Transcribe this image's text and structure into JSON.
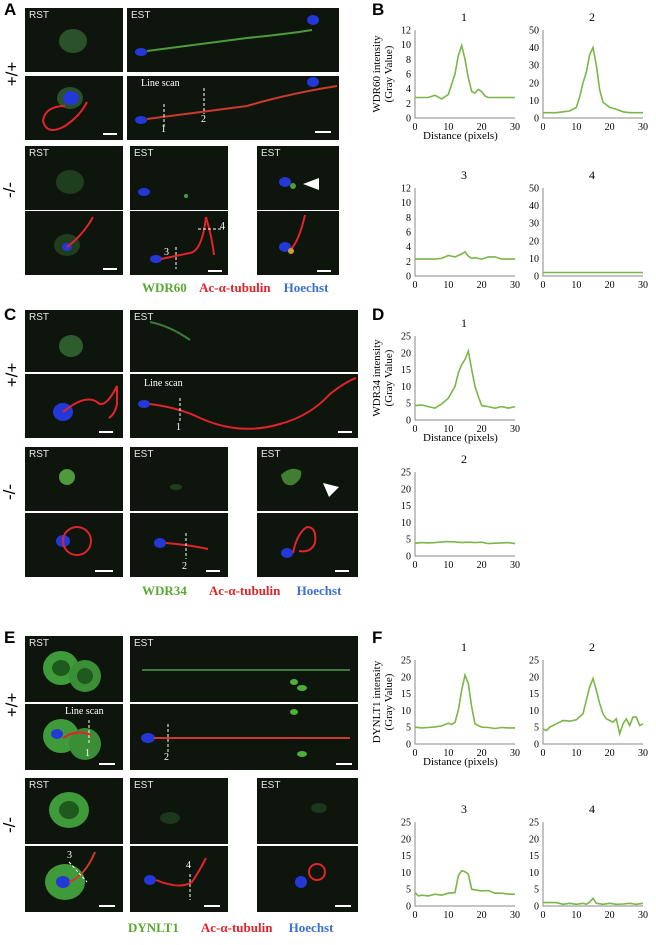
{
  "figure": {
    "panels": {
      "A": "A",
      "B": "B",
      "C": "C",
      "D": "D",
      "E": "E",
      "F": "F"
    },
    "genotypes": {
      "wt": "+/+",
      "ko": "-/-"
    },
    "stages": {
      "rst": "RST",
      "est": "EST"
    },
    "line_scan_label": "Line scan",
    "scan_numbers": [
      "1",
      "2",
      "3",
      "4"
    ],
    "legends": {
      "A": {
        "marker": "WDR60",
        "tubulin": "Ac-α-tubulin",
        "dna": "Hoechst"
      },
      "C": {
        "marker": "WDR34",
        "tubulin": "Ac-α-tubulin",
        "dna": "Hoechst"
      },
      "E": {
        "marker": "DYNLT1",
        "tubulin": "Ac-α-tubulin",
        "dna": "Hoechst"
      }
    },
    "colors": {
      "green": "#5aa832",
      "red": "#e0242a",
      "blue": "#3b6fd0",
      "line": "#7ab648"
    }
  },
  "chart_data": [
    {
      "panel": "B",
      "title": "1",
      "type": "line",
      "ylabel": "WDR60 intensity\n(Gray Value)",
      "xlabel": "Distance (pixels)",
      "xlim": [
        0,
        30
      ],
      "ylim": [
        0,
        12
      ],
      "yticks": [
        0,
        2,
        4,
        6,
        8,
        10,
        12
      ],
      "xticks": [
        0,
        10,
        20,
        30
      ],
      "x": [
        0,
        2,
        4,
        6,
        8,
        10,
        12,
        13,
        14,
        15,
        16,
        17,
        18,
        19,
        20,
        21,
        22,
        24,
        26,
        28,
        30
      ],
      "y": [
        2.8,
        2.8,
        2.8,
        3.1,
        2.6,
        3.2,
        6.0,
        8.5,
        9.9,
        8.0,
        5.5,
        3.6,
        3.4,
        3.9,
        3.6,
        3.0,
        2.8,
        2.8,
        2.8,
        2.8,
        2.8
      ]
    },
    {
      "panel": "B",
      "title": "2",
      "type": "line",
      "xlim": [
        0,
        30
      ],
      "ylim": [
        0,
        50
      ],
      "yticks": [
        0,
        10,
        20,
        30,
        40,
        50
      ],
      "xticks": [
        0,
        10,
        20,
        30
      ],
      "x": [
        0,
        2,
        4,
        6,
        8,
        10,
        11,
        12,
        13,
        14,
        15,
        16,
        17,
        18,
        20,
        22,
        24,
        26,
        28,
        30
      ],
      "y": [
        3,
        3,
        3,
        3.5,
        4,
        6,
        12,
        20,
        26,
        36,
        40,
        30,
        16,
        9,
        6,
        5,
        3.5,
        3,
        3,
        3
      ]
    },
    {
      "panel": "B",
      "title": "3",
      "type": "line",
      "xlim": [
        0,
        30
      ],
      "ylim": [
        0,
        12
      ],
      "yticks": [
        0,
        2,
        4,
        6,
        8,
        10,
        12
      ],
      "xticks": [
        0,
        10,
        20,
        30
      ],
      "x": [
        0,
        2,
        4,
        6,
        8,
        10,
        12,
        14,
        15,
        16,
        17,
        18,
        20,
        22,
        24,
        26,
        28,
        30
      ],
      "y": [
        2.3,
        2.3,
        2.3,
        2.3,
        2.4,
        2.8,
        2.6,
        3.0,
        3.3,
        2.7,
        2.4,
        2.5,
        2.3,
        2.6,
        2.6,
        2.3,
        2.3,
        2.3
      ]
    },
    {
      "panel": "B",
      "title": "4",
      "type": "line",
      "xlim": [
        0,
        30
      ],
      "ylim": [
        0,
        50
      ],
      "yticks": [
        0,
        10,
        20,
        30,
        40,
        50
      ],
      "xticks": [
        0,
        10,
        20,
        30
      ],
      "x": [
        0,
        10,
        20,
        30
      ],
      "y": [
        2,
        2,
        2,
        2
      ]
    },
    {
      "panel": "D",
      "title": "1",
      "type": "line",
      "ylabel": "WDR34 intensity\n(Gray Value)",
      "xlabel": "Distance (pixels)",
      "xlim": [
        0,
        30
      ],
      "ylim": [
        0,
        25
      ],
      "yticks": [
        0,
        5,
        10,
        15,
        20,
        25
      ],
      "xticks": [
        0,
        10,
        20,
        30
      ],
      "x": [
        0,
        2,
        4,
        6,
        8,
        10,
        12,
        13,
        14,
        15,
        16,
        17,
        18,
        19,
        20,
        22,
        24,
        26,
        28,
        30
      ],
      "y": [
        4.3,
        4.5,
        4.0,
        3.5,
        4.8,
        6.5,
        10,
        14,
        16.5,
        18,
        20.5,
        15,
        10,
        7,
        4.3,
        4,
        3.5,
        4,
        3.5,
        4
      ]
    },
    {
      "panel": "D",
      "title": "2",
      "type": "line",
      "xlim": [
        0,
        30
      ],
      "ylim": [
        0,
        25
      ],
      "yticks": [
        0,
        5,
        10,
        15,
        20,
        25
      ],
      "xticks": [
        0,
        10,
        20,
        30
      ],
      "x": [
        0,
        2,
        4,
        6,
        8,
        10,
        12,
        14,
        16,
        18,
        20,
        22,
        24,
        26,
        28,
        30
      ],
      "y": [
        3.8,
        4.0,
        3.9,
        4.0,
        4.2,
        4.3,
        4.2,
        4.0,
        4.1,
        4.0,
        4.1,
        3.7,
        3.8,
        3.9,
        4.0,
        3.7
      ]
    },
    {
      "panel": "F",
      "title": "1",
      "type": "line",
      "ylabel": "DYNLT1 intensity\n(Gray Value)",
      "xlabel": "Distance (pixels)",
      "xlim": [
        0,
        30
      ],
      "ylim": [
        0,
        25
      ],
      "yticks": [
        0,
        5,
        10,
        15,
        20,
        25
      ],
      "xticks": [
        0,
        10,
        20,
        30
      ],
      "x": [
        0,
        2,
        4,
        6,
        8,
        10,
        11,
        12,
        13,
        14,
        15,
        16,
        17,
        18,
        20,
        22,
        24,
        26,
        28,
        30
      ],
      "y": [
        5,
        4.8,
        4.9,
        5.1,
        5.4,
        6.2,
        5.8,
        6.5,
        10,
        16,
        20.5,
        18,
        11,
        6,
        5,
        4.9,
        4.6,
        4.9,
        4.8,
        4.8
      ]
    },
    {
      "panel": "F",
      "title": "2",
      "type": "line",
      "xlim": [
        0,
        30
      ],
      "ylim": [
        0,
        25
      ],
      "yticks": [
        0,
        5,
        10,
        15,
        20,
        25
      ],
      "xticks": [
        0,
        10,
        20,
        30
      ],
      "x": [
        0,
        1,
        2,
        3,
        4,
        5,
        6,
        8,
        10,
        12,
        13,
        14,
        15,
        16,
        17,
        18,
        19,
        20,
        21,
        22,
        23,
        24,
        25,
        26,
        27,
        28,
        29,
        30
      ],
      "y": [
        4.5,
        4,
        5,
        5.5,
        6,
        6.5,
        7,
        6.8,
        7.2,
        9,
        13,
        17,
        19.5,
        16,
        12,
        9,
        7.5,
        7,
        6.5,
        7.5,
        3,
        6,
        7.5,
        5.5,
        8,
        8,
        5.5,
        6
      ]
    },
    {
      "panel": "F",
      "title": "3",
      "type": "line",
      "xlim": [
        0,
        30
      ],
      "ylim": [
        0,
        25
      ],
      "yticks": [
        0,
        5,
        10,
        15,
        20,
        25
      ],
      "xticks": [
        0,
        10,
        20,
        30
      ],
      "x": [
        0,
        1,
        2,
        4,
        6,
        8,
        10,
        12,
        13,
        14,
        15,
        16,
        17,
        18,
        20,
        22,
        24,
        26,
        28,
        30
      ],
      "y": [
        4,
        3,
        3.2,
        3,
        3.5,
        3.2,
        3.8,
        4,
        9,
        10.5,
        10.2,
        9.5,
        5,
        4.8,
        4.5,
        4.6,
        3.8,
        3.8,
        3.5,
        3.5
      ]
    },
    {
      "panel": "F",
      "title": "4",
      "type": "line",
      "xlim": [
        0,
        30
      ],
      "ylim": [
        0,
        25
      ],
      "yticks": [
        0,
        5,
        10,
        15,
        20,
        25
      ],
      "xticks": [
        0,
        10,
        20,
        30
      ],
      "x": [
        0,
        2,
        4,
        6,
        8,
        10,
        12,
        13,
        14,
        15,
        16,
        18,
        20,
        22,
        24,
        26,
        28,
        30
      ],
      "y": [
        1,
        1,
        1,
        0.5,
        0.8,
        0.5,
        0.8,
        0.5,
        1.2,
        2.3,
        0.8,
        0.5,
        0.8,
        0.5,
        0.6,
        0.8,
        0.5,
        0.8
      ]
    }
  ]
}
